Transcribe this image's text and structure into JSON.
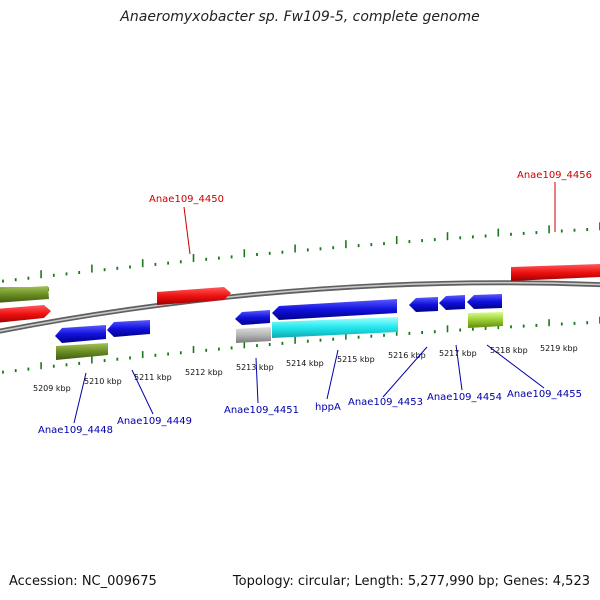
{
  "title": "Anaeromyxobacter sp. Fw109-5, complete genome",
  "footer": {
    "accession": "Accession: NC_009675",
    "summary": "Topology: circular; Length: 5,277,990 bp; Genes: 4,523"
  },
  "colors": {
    "tick": "#1a7a1a",
    "backbone": "#8a8a8a",
    "strand_label_plus": "#cc0000",
    "strand_label_minus": "#0000aa",
    "gene_red": "#ee1111",
    "gene_blue": "#1111dd",
    "gene_olive": "#6b8e23",
    "gene_cyan": "#22e8ee",
    "gene_grey": "#b5b5b5",
    "gene_lime": "#9acd32"
  },
  "axis_ticks": [
    "5209 kbp",
    "5210 kbp",
    "5211 kbp",
    "5212 kbp",
    "5213 kbp",
    "5214 kbp",
    "5215 kbp",
    "5216 kbp",
    "5217 kbp",
    "5218 kbp",
    "5219 kbp"
  ],
  "gene_labels": [
    {
      "text": "Anae109_4450",
      "strand": "plus"
    },
    {
      "text": "Anae109_4456",
      "strand": "plus"
    },
    {
      "text": "Anae109_4448",
      "strand": "minus"
    },
    {
      "text": "Anae109_4449",
      "strand": "minus"
    },
    {
      "text": "Anae109_4451",
      "strand": "minus"
    },
    {
      "text": "hppA",
      "strand": "minus"
    },
    {
      "text": "Anae109_4453",
      "strand": "minus"
    },
    {
      "text": "Anae109_4454",
      "strand": "minus"
    },
    {
      "text": "Anae109_4455",
      "strand": "minus"
    }
  ]
}
